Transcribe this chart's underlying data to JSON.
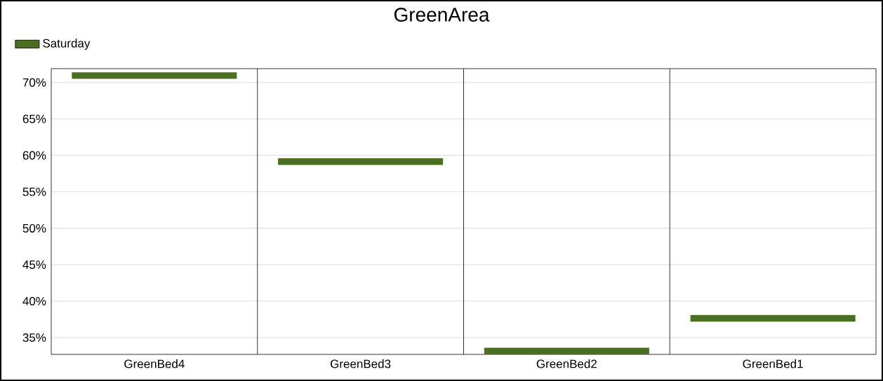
{
  "chart_data": {
    "type": "bar",
    "title": "GreenArea",
    "categories": [
      "GreenBed4",
      "GreenBed3",
      "GreenBed2",
      "GreenBed1"
    ],
    "series": [
      {
        "name": "Saturday",
        "color": "#4a6f1e",
        "base": [
          70.5,
          58.7,
          32.7,
          37.2
        ],
        "values": [
          0.9,
          0.9,
          0.9,
          0.9
        ]
      }
    ],
    "ylim": [
      32.7,
      71.9
    ],
    "yticks": [
      {
        "value": 35,
        "label": "35%"
      },
      {
        "value": 40,
        "label": "40%"
      },
      {
        "value": 45,
        "label": "45%"
      },
      {
        "value": 50,
        "label": "50%"
      },
      {
        "value": 55,
        "label": "55%"
      },
      {
        "value": 60,
        "label": "60%"
      },
      {
        "value": 65,
        "label": "65%"
      },
      {
        "value": 70,
        "label": "70%"
      }
    ],
    "grid": "y",
    "legend": "top left"
  }
}
